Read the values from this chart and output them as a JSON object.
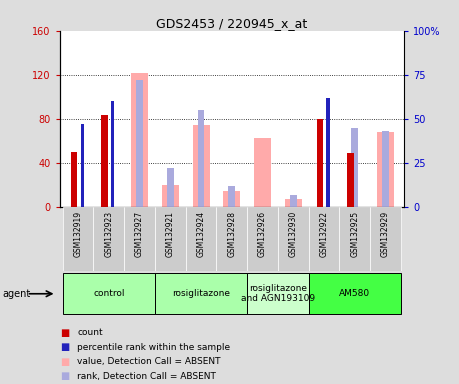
{
  "title": "GDS2453 / 220945_x_at",
  "samples": [
    "GSM132919",
    "GSM132923",
    "GSM132927",
    "GSM132921",
    "GSM132924",
    "GSM132928",
    "GSM132926",
    "GSM132930",
    "GSM132922",
    "GSM132925",
    "GSM132929"
  ],
  "red_bars": [
    50,
    84,
    0,
    0,
    0,
    0,
    0,
    0,
    80,
    49,
    0
  ],
  "blue_bars": [
    47,
    60,
    0,
    0,
    0,
    0,
    0,
    0,
    62,
    0,
    0
  ],
  "pink_bars": [
    0,
    0,
    122,
    20,
    75,
    15,
    63,
    8,
    0,
    0,
    68
  ],
  "light_blue_bars": [
    0,
    0,
    72,
    22,
    55,
    12,
    0,
    7,
    0,
    45,
    43
  ],
  "groups": [
    {
      "label": "control",
      "indices": [
        0,
        1,
        2
      ],
      "color": "#aaffaa"
    },
    {
      "label": "rosiglitazone",
      "indices": [
        3,
        4,
        5
      ],
      "color": "#aaffaa"
    },
    {
      "label": "rosiglitazone\nand AGN193109",
      "indices": [
        6,
        7
      ],
      "color": "#ccffcc"
    },
    {
      "label": "AM580",
      "indices": [
        8,
        9,
        10
      ],
      "color": "#44ff44"
    }
  ],
  "ylim_left": [
    0,
    160
  ],
  "ylim_right": [
    0,
    100
  ],
  "yticks_left": [
    0,
    40,
    80,
    120,
    160
  ],
  "yticks_right": [
    0,
    25,
    50,
    75,
    100
  ],
  "ytick_labels_left": [
    "0",
    "40",
    "80",
    "120",
    "160"
  ],
  "ytick_labels_right": [
    "0",
    "25",
    "50",
    "75",
    "100%"
  ],
  "left_axis_color": "#cc0000",
  "right_axis_color": "#0000cc",
  "red_color": "#cc0000",
  "blue_color": "#2222bb",
  "pink_color": "#ffaaaa",
  "light_blue_color": "#aaaadd",
  "agent_label": "agent",
  "background_color": "#dddddd",
  "plot_bg": "#ffffff",
  "sample_bg": "#cccccc"
}
